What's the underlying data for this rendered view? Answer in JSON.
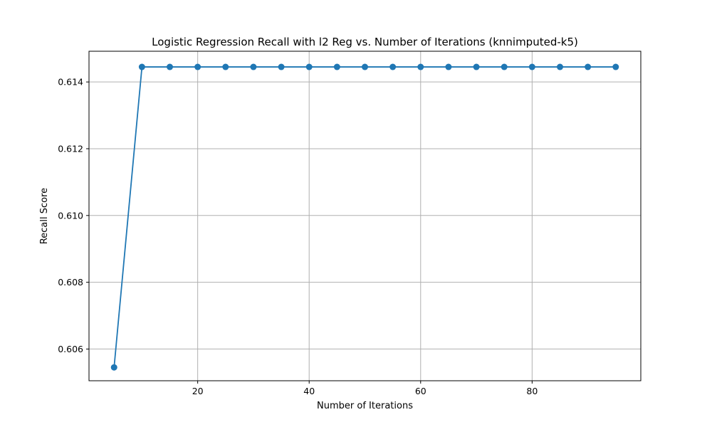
{
  "chart_data": {
    "type": "line",
    "title": "Logistic Regression Recall with l2 Reg vs. Number of Iterations (knnimputed-k5)",
    "xlabel": "Number of Iterations",
    "ylabel": "Recall Score",
    "xlim": [
      0.5,
      99.5
    ],
    "ylim": [
      0.60505,
      0.61492
    ],
    "x_ticks": [
      20,
      40,
      60,
      80
    ],
    "y_ticks": [
      0.606,
      0.608,
      0.61,
      0.612,
      0.614
    ],
    "x_tick_labels": [
      "20",
      "40",
      "60",
      "80"
    ],
    "y_tick_labels": [
      "0.606",
      "0.608",
      "0.610",
      "0.612",
      "0.614"
    ],
    "grid": true,
    "series": [
      {
        "color": "#1f77b4",
        "marker": "circle",
        "x": [
          5,
          10,
          15,
          20,
          25,
          30,
          35,
          40,
          45,
          50,
          55,
          60,
          65,
          70,
          75,
          80,
          85,
          90,
          95
        ],
        "y": [
          0.60545,
          0.61445,
          0.61445,
          0.61445,
          0.61445,
          0.61445,
          0.61445,
          0.61445,
          0.61445,
          0.61445,
          0.61445,
          0.61445,
          0.61445,
          0.61445,
          0.61445,
          0.61445,
          0.61445,
          0.61445,
          0.61445
        ]
      }
    ]
  }
}
